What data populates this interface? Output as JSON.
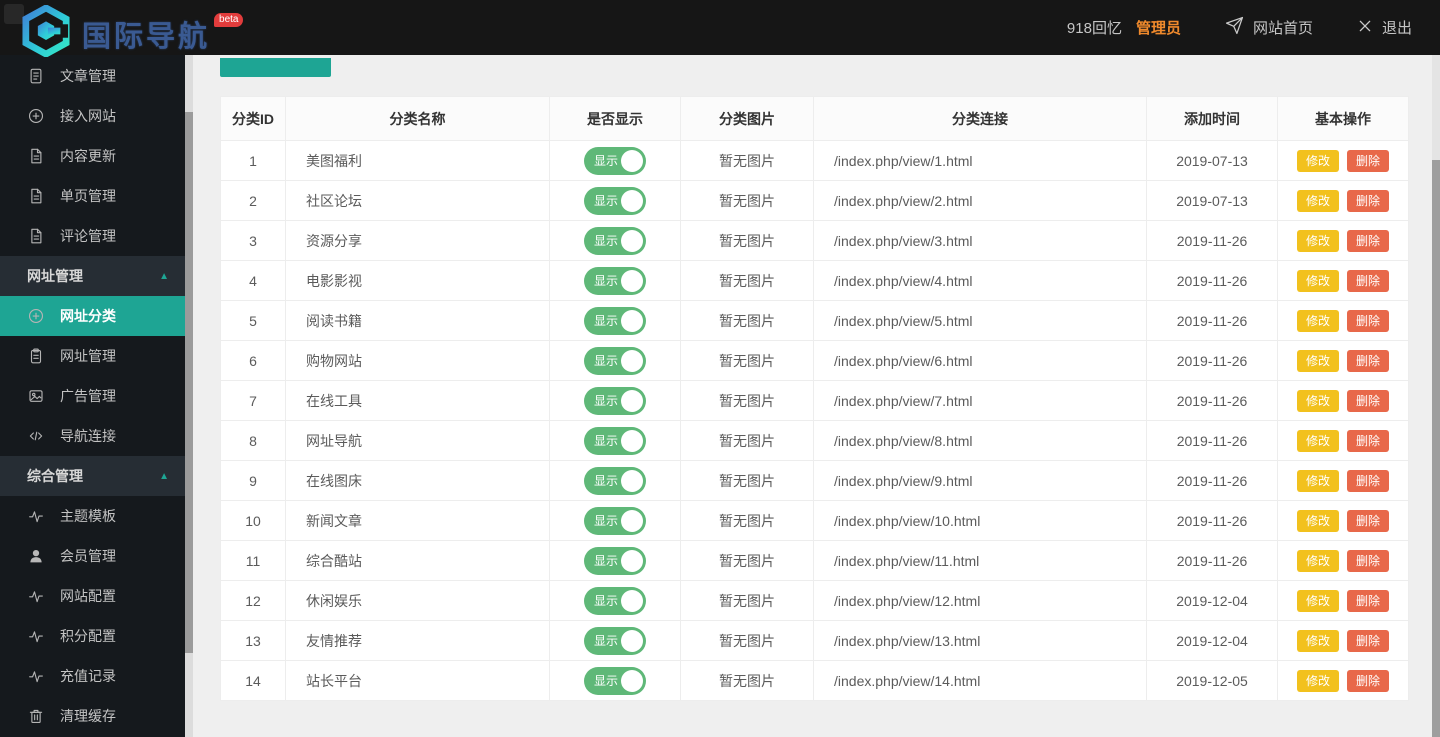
{
  "topbar": {
    "logo_title": "国际导航",
    "logo_badge": "beta",
    "username": "918回忆",
    "role": "管理员",
    "home_label": "网站首页",
    "logout_label": "退出"
  },
  "sidebar": {
    "items": [
      {
        "type": "item",
        "key": "article-manage",
        "icon": "doc-lines-icon",
        "label": "文章管理"
      },
      {
        "type": "item",
        "key": "access-site",
        "icon": "plus-circle-icon",
        "label": "接入网站"
      },
      {
        "type": "item",
        "key": "content-update",
        "icon": "file-icon",
        "label": "内容更新"
      },
      {
        "type": "item",
        "key": "single-page-manage",
        "icon": "file-icon",
        "label": "单页管理"
      },
      {
        "type": "item",
        "key": "comment-manage",
        "icon": "file-icon",
        "label": "评论管理"
      },
      {
        "type": "section",
        "key": "url-manage-group",
        "icon": "chevron-up-icon",
        "label": "网址管理"
      },
      {
        "type": "item",
        "key": "url-category",
        "icon": "plus-circle-icon",
        "label": "网址分类",
        "active": true
      },
      {
        "type": "item",
        "key": "url-manage",
        "icon": "clipboard-icon",
        "label": "网址管理"
      },
      {
        "type": "item",
        "key": "ad-manage",
        "icon": "image-icon",
        "label": "广告管理"
      },
      {
        "type": "item",
        "key": "nav-links",
        "icon": "code-icon",
        "label": "导航连接"
      },
      {
        "type": "section",
        "key": "general-group",
        "icon": "chevron-up-icon",
        "label": "综合管理"
      },
      {
        "type": "item",
        "key": "theme-template",
        "icon": "pulse-icon",
        "label": "主题模板"
      },
      {
        "type": "item",
        "key": "member-manage",
        "icon": "user-icon",
        "label": "会员管理"
      },
      {
        "type": "item",
        "key": "site-config",
        "icon": "pulse-icon",
        "label": "网站配置"
      },
      {
        "type": "item",
        "key": "points-config",
        "icon": "pulse-icon",
        "label": "积分配置"
      },
      {
        "type": "item",
        "key": "recharge-records",
        "icon": "pulse-icon",
        "label": "充值记录"
      },
      {
        "type": "item",
        "key": "clear-cache",
        "icon": "trash-icon",
        "label": "清理缓存"
      }
    ]
  },
  "table": {
    "headers": [
      "分类ID",
      "分类名称",
      "是否显示",
      "分类图片",
      "分类连接",
      "添加时间",
      "基本操作"
    ],
    "toggle_on_label": "显示",
    "actions": {
      "edit": "修改",
      "delete": "删除"
    },
    "rows": [
      {
        "id": "1",
        "name": "美图福利",
        "visible": true,
        "image": "暂无图片",
        "link": "/index.php/view/1.html",
        "date": "2019-07-13"
      },
      {
        "id": "2",
        "name": "社区论坛",
        "visible": true,
        "image": "暂无图片",
        "link": "/index.php/view/2.html",
        "date": "2019-07-13"
      },
      {
        "id": "3",
        "name": "资源分享",
        "visible": true,
        "image": "暂无图片",
        "link": "/index.php/view/3.html",
        "date": "2019-11-26"
      },
      {
        "id": "4",
        "name": "电影影视",
        "visible": true,
        "image": "暂无图片",
        "link": "/index.php/view/4.html",
        "date": "2019-11-26"
      },
      {
        "id": "5",
        "name": "阅读书籍",
        "visible": true,
        "image": "暂无图片",
        "link": "/index.php/view/5.html",
        "date": "2019-11-26"
      },
      {
        "id": "6",
        "name": "购物网站",
        "visible": true,
        "image": "暂无图片",
        "link": "/index.php/view/6.html",
        "date": "2019-11-26"
      },
      {
        "id": "7",
        "name": "在线工具",
        "visible": true,
        "image": "暂无图片",
        "link": "/index.php/view/7.html",
        "date": "2019-11-26"
      },
      {
        "id": "8",
        "name": "网址导航",
        "visible": true,
        "image": "暂无图片",
        "link": "/index.php/view/8.html",
        "date": "2019-11-26"
      },
      {
        "id": "9",
        "name": "在线图床",
        "visible": true,
        "image": "暂无图片",
        "link": "/index.php/view/9.html",
        "date": "2019-11-26"
      },
      {
        "id": "10",
        "name": "新闻文章",
        "visible": true,
        "image": "暂无图片",
        "link": "/index.php/view/10.html",
        "date": "2019-11-26"
      },
      {
        "id": "11",
        "name": "综合酷站",
        "visible": true,
        "image": "暂无图片",
        "link": "/index.php/view/11.html",
        "date": "2019-11-26"
      },
      {
        "id": "12",
        "name": "休闲娱乐",
        "visible": true,
        "image": "暂无图片",
        "link": "/index.php/view/12.html",
        "date": "2019-12-04"
      },
      {
        "id": "13",
        "name": "友情推荐",
        "visible": true,
        "image": "暂无图片",
        "link": "/index.php/view/13.html",
        "date": "2019-12-04"
      },
      {
        "id": "14",
        "name": "站长平台",
        "visible": true,
        "image": "暂无图片",
        "link": "/index.php/view/14.html",
        "date": "2019-12-05"
      }
    ]
  },
  "colors": {
    "accent": "#1EA594",
    "toggle_on": "#5FB878",
    "edit_button": "#F2C11D",
    "delete_button": "#E8684A",
    "role_text": "#F08A2C",
    "badge": "#E23C3C",
    "topbar_bg": "#161616",
    "sidebar_bg": "#15191D",
    "section_bg": "#262D34"
  }
}
